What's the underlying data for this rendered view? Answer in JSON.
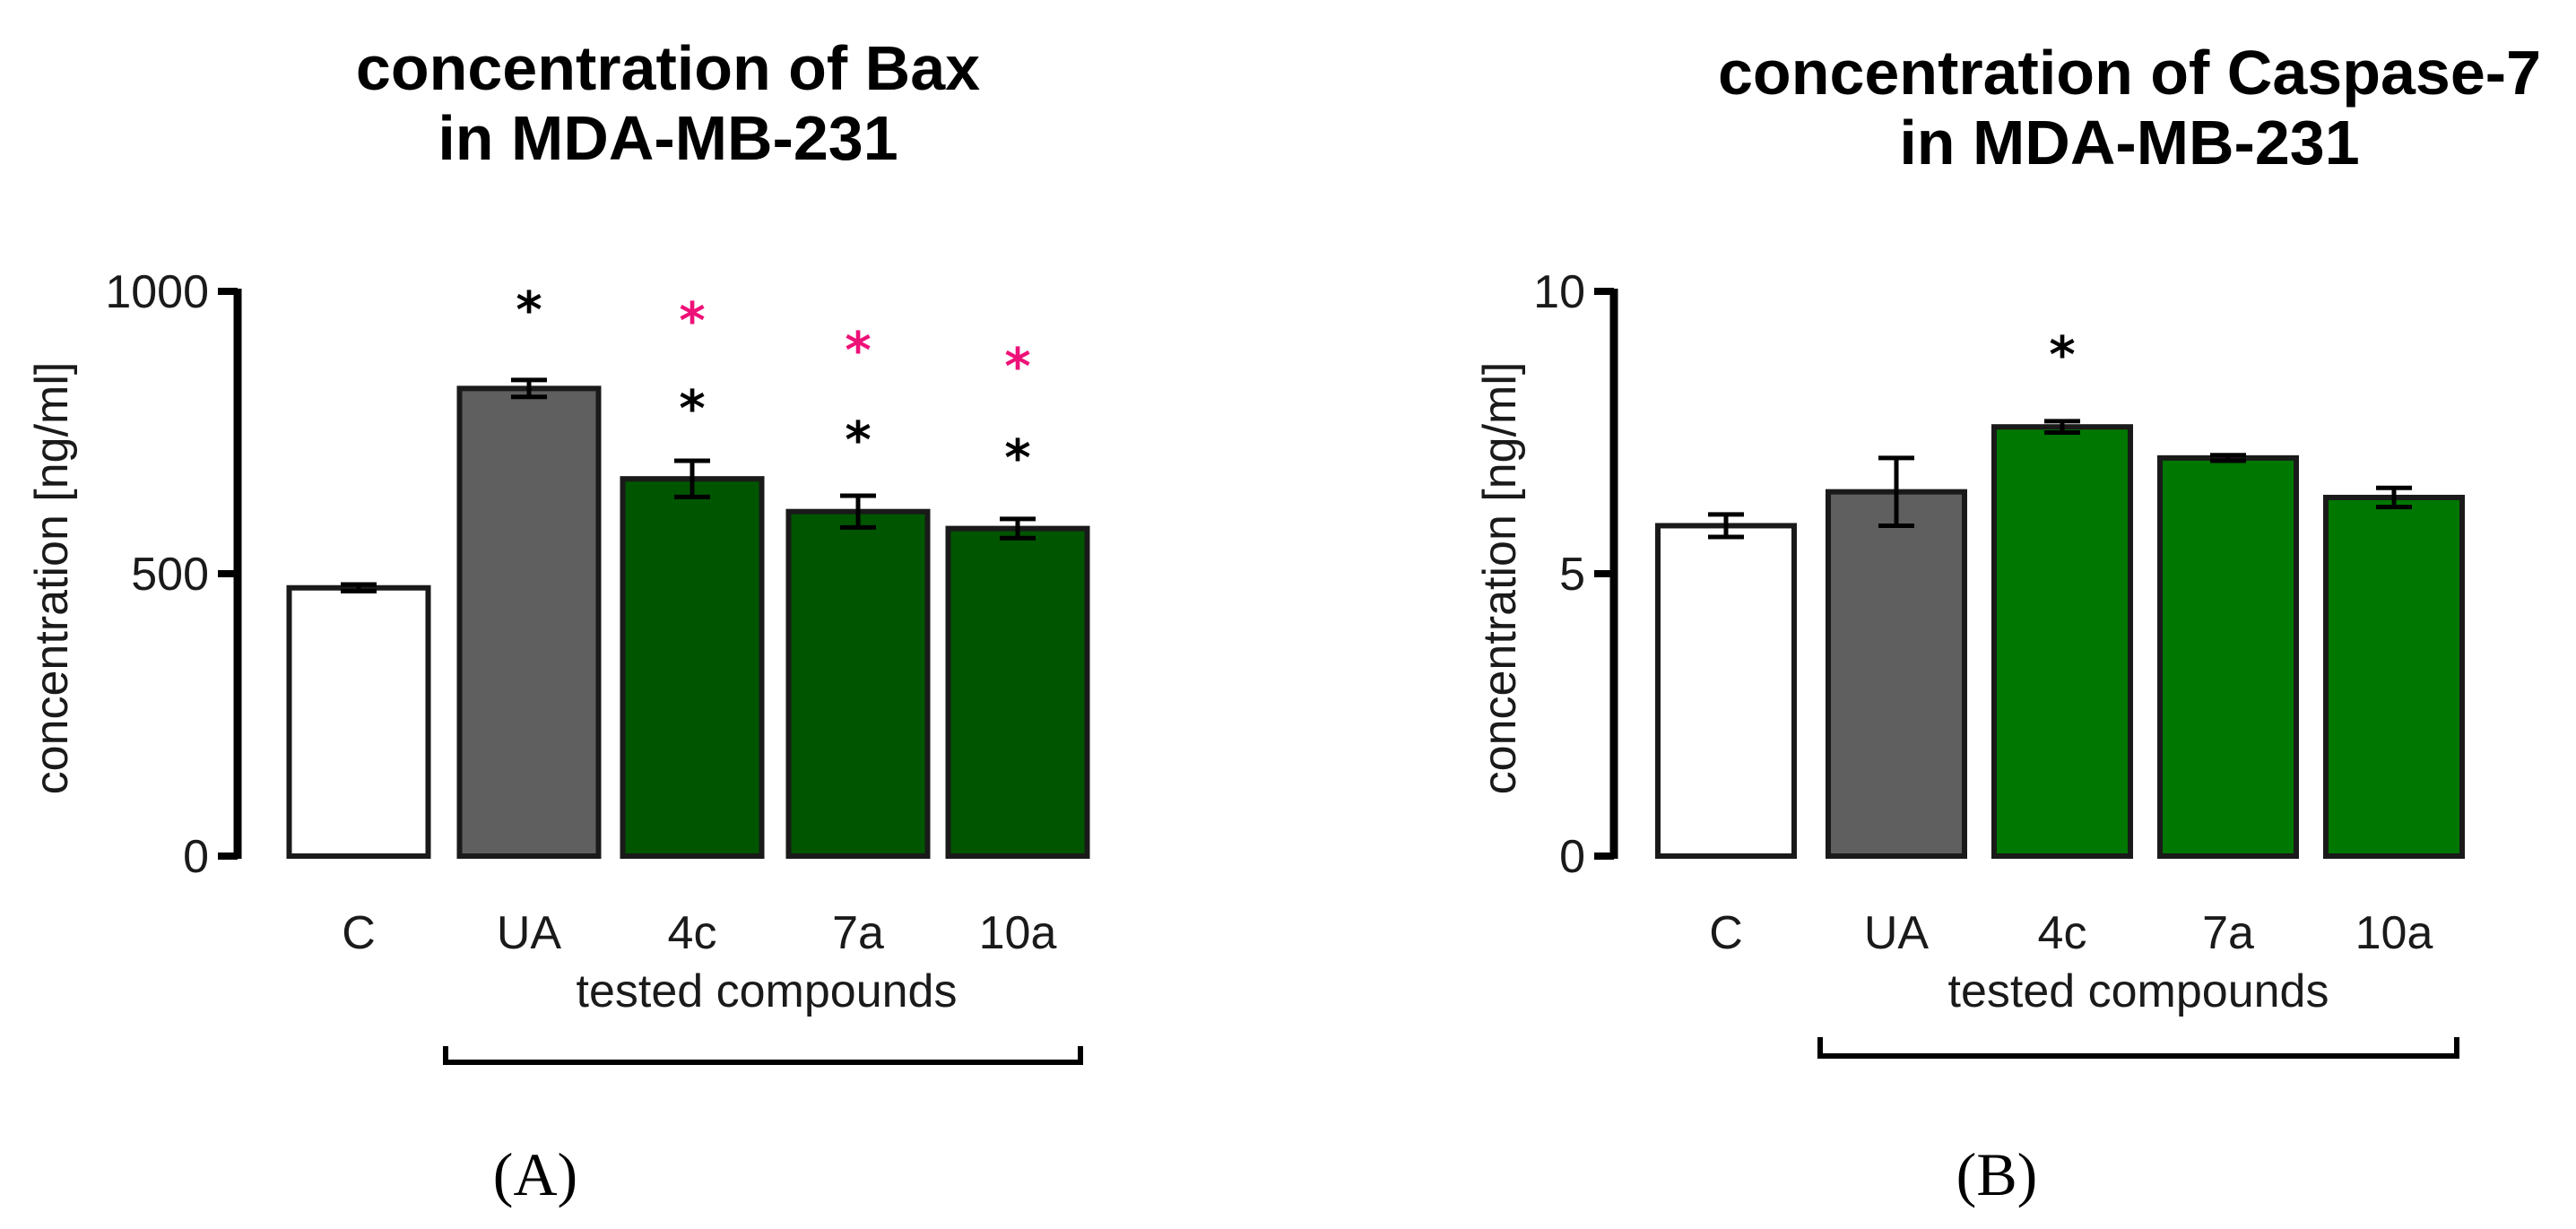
{
  "chart_data": [
    {
      "type": "bar",
      "panel": "(A)",
      "title_lines": [
        "concentration of Bax",
        "in MDA-MB-231"
      ],
      "xlabel": "tested compounds",
      "ylabel": "concentration [ng/ml]",
      "ylim": [
        0,
        1000
      ],
      "yticks": [
        "0",
        "500",
        "1000"
      ],
      "categories": [
        "C",
        "UA",
        "4c",
        "7a",
        "10a"
      ],
      "values": [
        475,
        828,
        668,
        610,
        580
      ],
      "errors": [
        6,
        15,
        32,
        28,
        17
      ],
      "bar_colors": [
        "#ffffff",
        "#5f5f5f",
        "#005500",
        "#005500",
        "#005500"
      ],
      "significance": [
        [],
        [
          {
            "symbol": "*",
            "color": "#000000"
          }
        ],
        [
          {
            "symbol": "*",
            "color": "#000000"
          },
          {
            "symbol": "*",
            "color": "#ee1177"
          }
        ],
        [
          {
            "symbol": "*",
            "color": "#000000"
          },
          {
            "symbol": "*",
            "color": "#ee1177"
          }
        ],
        [
          {
            "symbol": "*",
            "color": "#000000"
          },
          {
            "symbol": "*",
            "color": "#ee1177"
          }
        ]
      ]
    },
    {
      "type": "bar",
      "panel": "(B)",
      "title_lines": [
        "concentration of Caspase-7",
        "in MDA-MB-231"
      ],
      "xlabel": "tested compounds",
      "ylabel": "concentration [ng/ml]",
      "ylim": [
        0,
        10
      ],
      "yticks": [
        "0",
        "5",
        "10"
      ],
      "categories": [
        "C",
        "UA",
        "4c",
        "7a",
        "10a"
      ],
      "values": [
        5.85,
        6.45,
        7.6,
        7.05,
        6.35
      ],
      "errors": [
        0.2,
        0.6,
        0.1,
        0.05,
        0.17
      ],
      "bar_colors": [
        "#ffffff",
        "#5f5f5f",
        "#007700",
        "#007700",
        "#007700"
      ],
      "significance": [
        [],
        [],
        [
          {
            "symbol": "*",
            "color": "#000000"
          }
        ],
        [],
        []
      ]
    }
  ]
}
